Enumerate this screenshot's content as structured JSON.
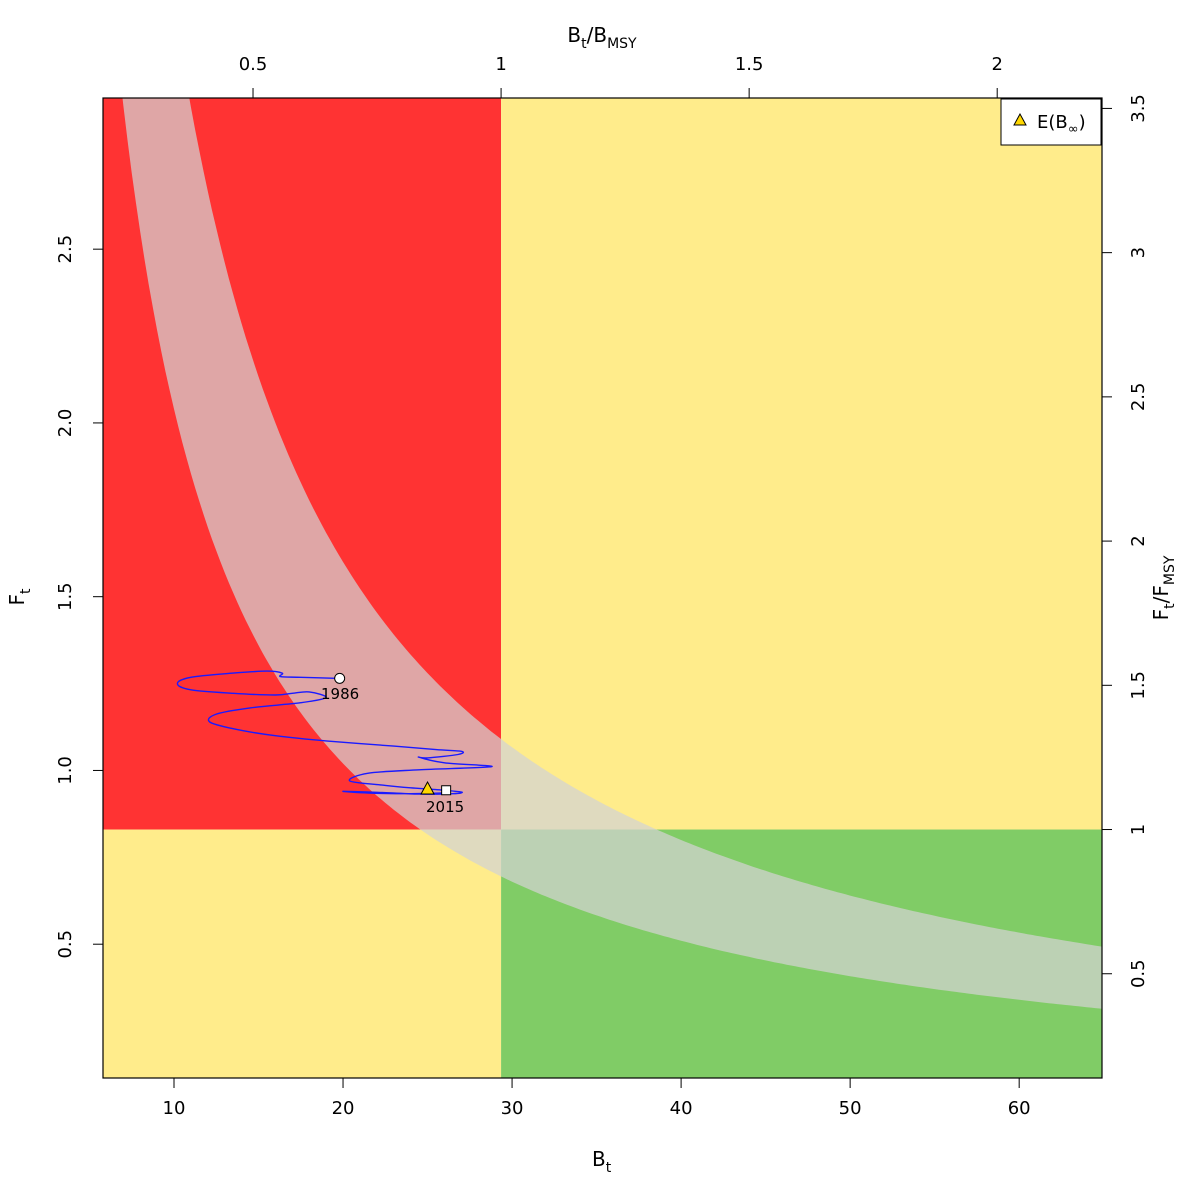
{
  "chart_data": {
    "type": "line",
    "colors": {
      "red_zone": "#ff3333",
      "yellow_zone": "#ffec8b",
      "green_zone": "#80cc66",
      "band": "#d3d3d3",
      "trajectory": "#1a1aff",
      "marker_triangle": "#ffd700"
    },
    "axes": {
      "bottom": {
        "label_main": "B",
        "label_sub": "t",
        "range": [
          5.8,
          64.9
        ],
        "ticks": [
          10,
          20,
          30,
          40,
          50,
          60
        ],
        "tick_labels": [
          "10",
          "20",
          "30",
          "40",
          "50",
          "60"
        ]
      },
      "left": {
        "label_main": "F",
        "label_sub": "t",
        "range": [
          0.115,
          2.935
        ],
        "ticks": [
          0.5,
          1.0,
          1.5,
          2.0,
          2.5
        ],
        "tick_labels": [
          "0.5",
          "1.0",
          "1.5",
          "2.0",
          "2.5"
        ]
      },
      "top": {
        "label_main": "B",
        "label_sub": "t",
        "label_div": "/B",
        "label_sub2": "MSY",
        "ticks": [
          0.5,
          1,
          1.5,
          2
        ],
        "tick_labels": [
          "0.5",
          "1",
          "1.5",
          "2"
        ]
      },
      "right": {
        "label_main": "F",
        "label_sub": "t",
        "label_div": "/F",
        "label_sub2": "MSY",
        "ticks": [
          0.5,
          1,
          1.5,
          2,
          2.5,
          3,
          3.5
        ],
        "tick_labels": [
          "0.5",
          "1",
          "1.5",
          "2",
          "2.5",
          "3",
          "3.5"
        ]
      }
    },
    "reference_points": {
      "Bmsy": 29.35,
      "Fmsy": 0.83
    },
    "zones": [
      {
        "name": "red",
        "b_range": [
          5.8,
          29.35
        ],
        "f_range": [
          0.83,
          2.935
        ]
      },
      {
        "name": "yellow-top-right",
        "b_range": [
          29.35,
          64.9
        ],
        "f_range": [
          0.83,
          2.935
        ]
      },
      {
        "name": "yellow-bottom-left",
        "b_range": [
          5.8,
          29.35
        ],
        "f_range": [
          0.115,
          0.83
        ]
      },
      {
        "name": "green",
        "b_range": [
          29.35,
          64.9
        ],
        "f_range": [
          0.115,
          0.83
        ]
      }
    ],
    "msy_band": {
      "lower_k": 20.4,
      "upper_k": 32.0
    },
    "trajectory": [
      [
        19.8,
        1.265
      ],
      [
        17.5,
        1.268
      ],
      [
        16.3,
        1.27
      ],
      [
        16.4,
        1.28
      ],
      [
        15.5,
        1.286
      ],
      [
        13.5,
        1.28
      ],
      [
        11.0,
        1.268
      ],
      [
        10.2,
        1.25
      ],
      [
        11.0,
        1.232
      ],
      [
        13.5,
        1.222
      ],
      [
        16.0,
        1.217
      ],
      [
        17.0,
        1.222
      ],
      [
        18.0,
        1.226
      ],
      [
        19.0,
        1.21
      ],
      [
        17.5,
        1.195
      ],
      [
        14.5,
        1.18
      ],
      [
        12.5,
        1.162
      ],
      [
        12.1,
        1.14
      ],
      [
        13.5,
        1.12
      ],
      [
        16.0,
        1.1
      ],
      [
        19.0,
        1.085
      ],
      [
        23.0,
        1.07
      ],
      [
        25.5,
        1.06
      ],
      [
        27.0,
        1.055
      ],
      [
        26.8,
        1.046
      ],
      [
        25.0,
        1.036
      ],
      [
        24.5,
        1.038
      ],
      [
        26.0,
        1.022
      ],
      [
        28.8,
        1.011
      ],
      [
        24.5,
        1.002
      ],
      [
        21.5,
        0.992
      ],
      [
        20.4,
        0.97
      ],
      [
        22.5,
        0.957
      ],
      [
        24.0,
        0.95
      ],
      [
        25.5,
        0.945
      ],
      [
        27.0,
        0.938
      ],
      [
        26.5,
        0.933
      ],
      [
        24.5,
        0.932
      ],
      [
        22.0,
        0.937
      ],
      [
        20.0,
        0.94
      ],
      [
        21.5,
        0.935
      ],
      [
        24.0,
        0.933
      ],
      [
        26.0,
        0.935
      ]
    ],
    "points": [
      {
        "name": "1986",
        "shape": "circle",
        "b": 19.8,
        "f": 1.265
      },
      {
        "name": "2015",
        "shape": "square",
        "b": 26.1,
        "f": 0.943
      },
      {
        "name": "E(B∞)",
        "shape": "triangle",
        "b": 25.0,
        "f": 0.948
      }
    ],
    "annotations": [
      {
        "text": "1986",
        "b": 19.8,
        "f": 1.265
      },
      {
        "text": "2015",
        "b": 26.1,
        "f": 0.943
      }
    ],
    "legend": {
      "position": "top-right",
      "label_main": "E(B",
      "label_sub": "∞",
      "label_end": ")"
    }
  }
}
